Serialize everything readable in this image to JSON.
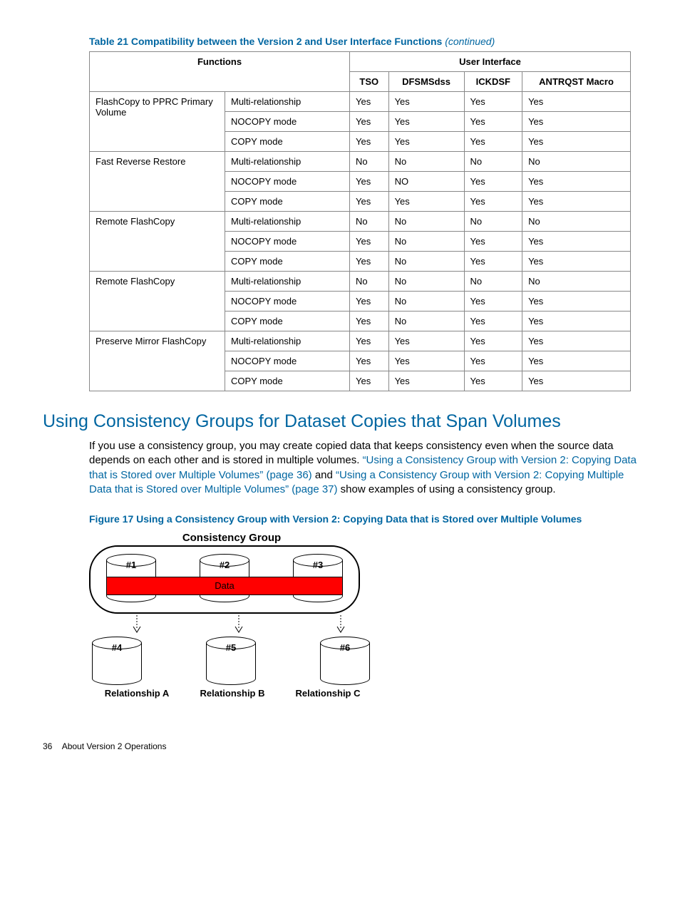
{
  "table": {
    "caption_prefix": "Table 21 Compatibility between the Version 2 and User Interface Functions",
    "caption_suffix": "(continued)",
    "header_left": "Functions",
    "header_right": "User Interface",
    "cols": [
      "TSO",
      "DFSMSdss",
      "ICKDSF",
      "ANTRQST Macro"
    ],
    "groups": [
      {
        "name": "FlashCopy to PPRC Primary Volume",
        "rows": [
          {
            "mode": "Multi-relationship",
            "vals": [
              "Yes",
              "Yes",
              "Yes",
              "Yes"
            ]
          },
          {
            "mode": "NOCOPY mode",
            "vals": [
              "Yes",
              "Yes",
              "Yes",
              "Yes"
            ]
          },
          {
            "mode": "COPY mode",
            "vals": [
              "Yes",
              "Yes",
              "Yes",
              "Yes"
            ]
          }
        ]
      },
      {
        "name": "Fast Reverse Restore",
        "rows": [
          {
            "mode": "Multi-relationship",
            "vals": [
              "No",
              "No",
              "No",
              "No"
            ]
          },
          {
            "mode": "NOCOPY mode",
            "vals": [
              "Yes",
              "NO",
              "Yes",
              "Yes"
            ]
          },
          {
            "mode": "COPY mode",
            "vals": [
              "Yes",
              "Yes",
              "Yes",
              "Yes"
            ]
          }
        ]
      },
      {
        "name": "Remote FlashCopy",
        "rows": [
          {
            "mode": "Multi-relationship",
            "vals": [
              "No",
              "No",
              "No",
              "No"
            ]
          },
          {
            "mode": "NOCOPY mode",
            "vals": [
              "Yes",
              "No",
              "Yes",
              "Yes"
            ]
          },
          {
            "mode": "COPY mode",
            "vals": [
              "Yes",
              "No",
              "Yes",
              "Yes"
            ]
          }
        ]
      },
      {
        "name": "Remote FlashCopy",
        "rows": [
          {
            "mode": "Multi-relationship",
            "vals": [
              "No",
              "No",
              "No",
              "No"
            ]
          },
          {
            "mode": "NOCOPY mode",
            "vals": [
              "Yes",
              "No",
              "Yes",
              "Yes"
            ]
          },
          {
            "mode": "COPY mode",
            "vals": [
              "Yes",
              "No",
              "Yes",
              "Yes"
            ]
          }
        ]
      },
      {
        "name": "Preserve Mirror FlashCopy",
        "rows": [
          {
            "mode": "Multi-relationship",
            "vals": [
              "Yes",
              "Yes",
              "Yes",
              "Yes"
            ]
          },
          {
            "mode": "NOCOPY mode",
            "vals": [
              "Yes",
              "Yes",
              "Yes",
              "Yes"
            ]
          },
          {
            "mode": "COPY mode",
            "vals": [
              "Yes",
              "Yes",
              "Yes",
              "Yes"
            ]
          }
        ]
      }
    ]
  },
  "section": {
    "heading": "Using Consistency Groups for Dataset Copies that Span Volumes",
    "para_pre": "If you use a consistency group, you may create copied data that keeps consistency even when the source data depends on each other and is stored in multiple volumes. ",
    "link1": "“Using a Consistency Group with Version 2: Copying Data that is Stored over Multiple Volumes” (page 36)",
    "mid": " and ",
    "link2": "“Using a Consistency Group with Version 2: Copying Multiple Data that is Stored over Multiple Volumes” (page 37)",
    "para_post": " show examples of using a consistency group."
  },
  "figure": {
    "caption": "Figure 17 Using a Consistency Group with Version 2: Copying Data that is Stored over Multiple Volumes",
    "title": "Consistency Group",
    "top_labels": [
      "#1",
      "#2",
      "#3"
    ],
    "bottom_labels": [
      "#4",
      "#5",
      "#6"
    ],
    "bar_label": "Data",
    "relationships": [
      "Relationship A",
      "Relationship B",
      "Relationship C"
    ]
  },
  "footer": {
    "page": "36",
    "title": "About Version 2 Operations"
  }
}
